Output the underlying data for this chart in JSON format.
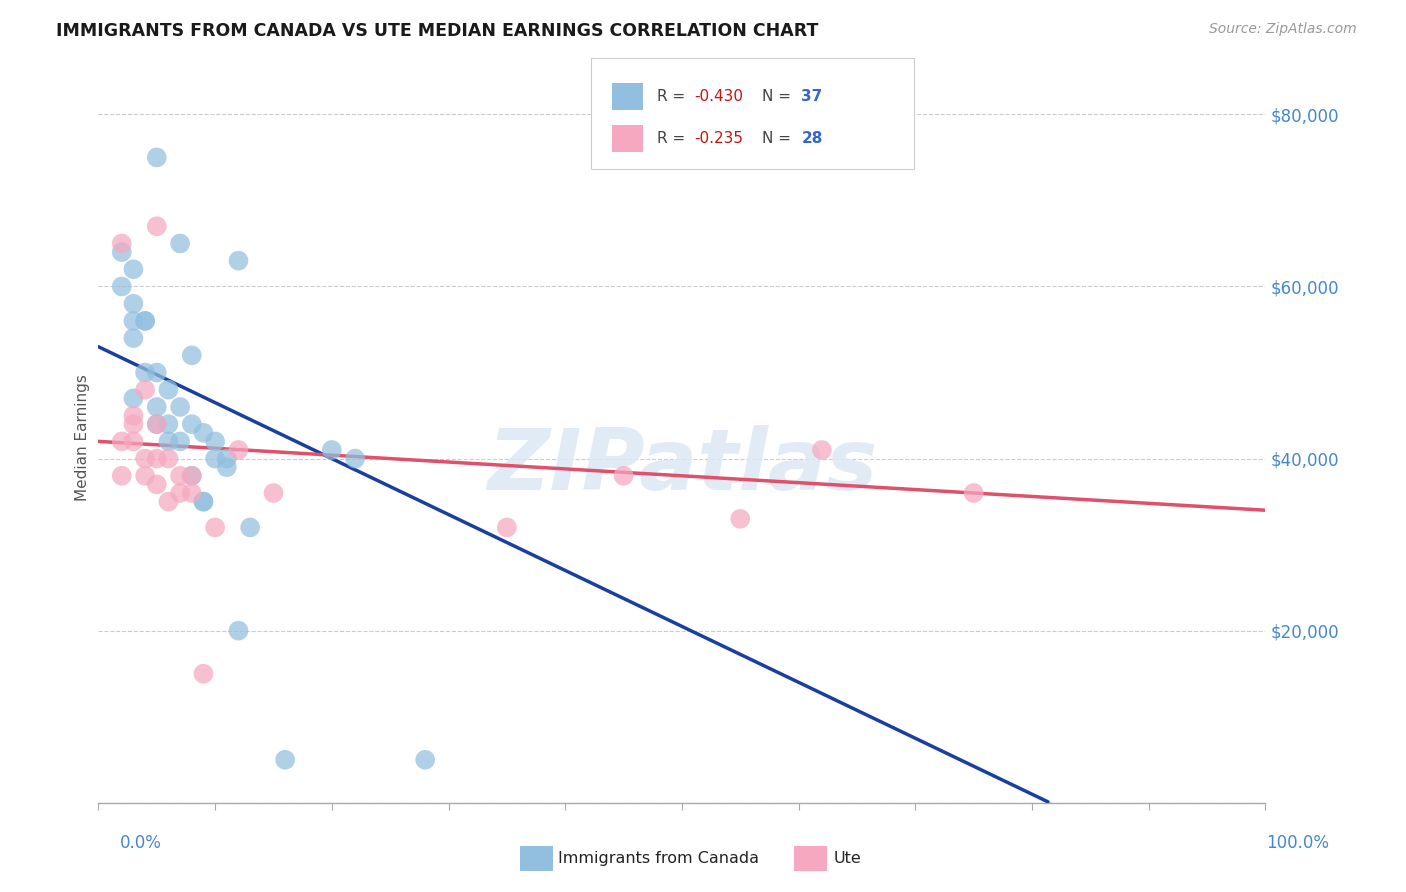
{
  "title": "IMMIGRANTS FROM CANADA VS UTE MEDIAN EARNINGS CORRELATION CHART",
  "source": "Source: ZipAtlas.com",
  "ylabel": "Median Earnings",
  "legend_label1": "Immigrants from Canada",
  "legend_label2": "Ute",
  "r1": "-0.430",
  "n1": "37",
  "r2": "-0.235",
  "n2": "28",
  "color_blue": "#92bfdf",
  "color_pink": "#f5a8bf",
  "color_line_blue": "#1a3fa0",
  "color_line_pink": "#e0506a",
  "title_color": "#1a1a1a",
  "source_color": "#999999",
  "axis_label_color": "#4488cc",
  "ylabel_color": "#555555",
  "grid_color": "#cccccc",
  "watermark_text": "ZIPatlas",
  "watermark_color": "#dce8f4",
  "background_color": "#ffffff",
  "blue_x": [
    5,
    12,
    7,
    8,
    4,
    3,
    6,
    10,
    2,
    3,
    4,
    5,
    6,
    7,
    8,
    9,
    10,
    11,
    3,
    4,
    5,
    6,
    7,
    9,
    3,
    2,
    3,
    5,
    8,
    11,
    13,
    20,
    22,
    28,
    16,
    12,
    9
  ],
  "blue_y": [
    75000,
    63000,
    65000,
    52000,
    56000,
    47000,
    42000,
    42000,
    60000,
    58000,
    56000,
    50000,
    48000,
    46000,
    44000,
    43000,
    40000,
    40000,
    54000,
    50000,
    46000,
    44000,
    42000,
    35000,
    62000,
    64000,
    56000,
    44000,
    38000,
    39000,
    32000,
    41000,
    40000,
    5000,
    5000,
    20000,
    35000
  ],
  "pink_x": [
    2,
    5,
    8,
    12,
    3,
    4,
    5,
    6,
    7,
    3,
    5,
    7,
    10,
    2,
    4,
    6,
    8,
    9,
    15,
    3,
    2,
    4,
    5,
    62,
    75,
    45,
    55,
    35
  ],
  "pink_y": [
    65000,
    67000,
    38000,
    41000,
    45000,
    48000,
    40000,
    40000,
    38000,
    44000,
    44000,
    36000,
    32000,
    42000,
    38000,
    35000,
    36000,
    15000,
    36000,
    42000,
    38000,
    40000,
    37000,
    41000,
    36000,
    38000,
    33000,
    32000
  ],
  "blue_line_y0": 53000,
  "blue_line_slope": -650,
  "pink_line_y0": 42000,
  "pink_line_slope": -80,
  "ytick_vals": [
    0,
    20000,
    40000,
    60000,
    80000
  ],
  "ytick_labels": [
    "",
    "$20,000",
    "$40,000",
    "$60,000",
    "$80,000"
  ],
  "xlim": [
    0,
    100
  ],
  "ylim": [
    0,
    85000
  ]
}
